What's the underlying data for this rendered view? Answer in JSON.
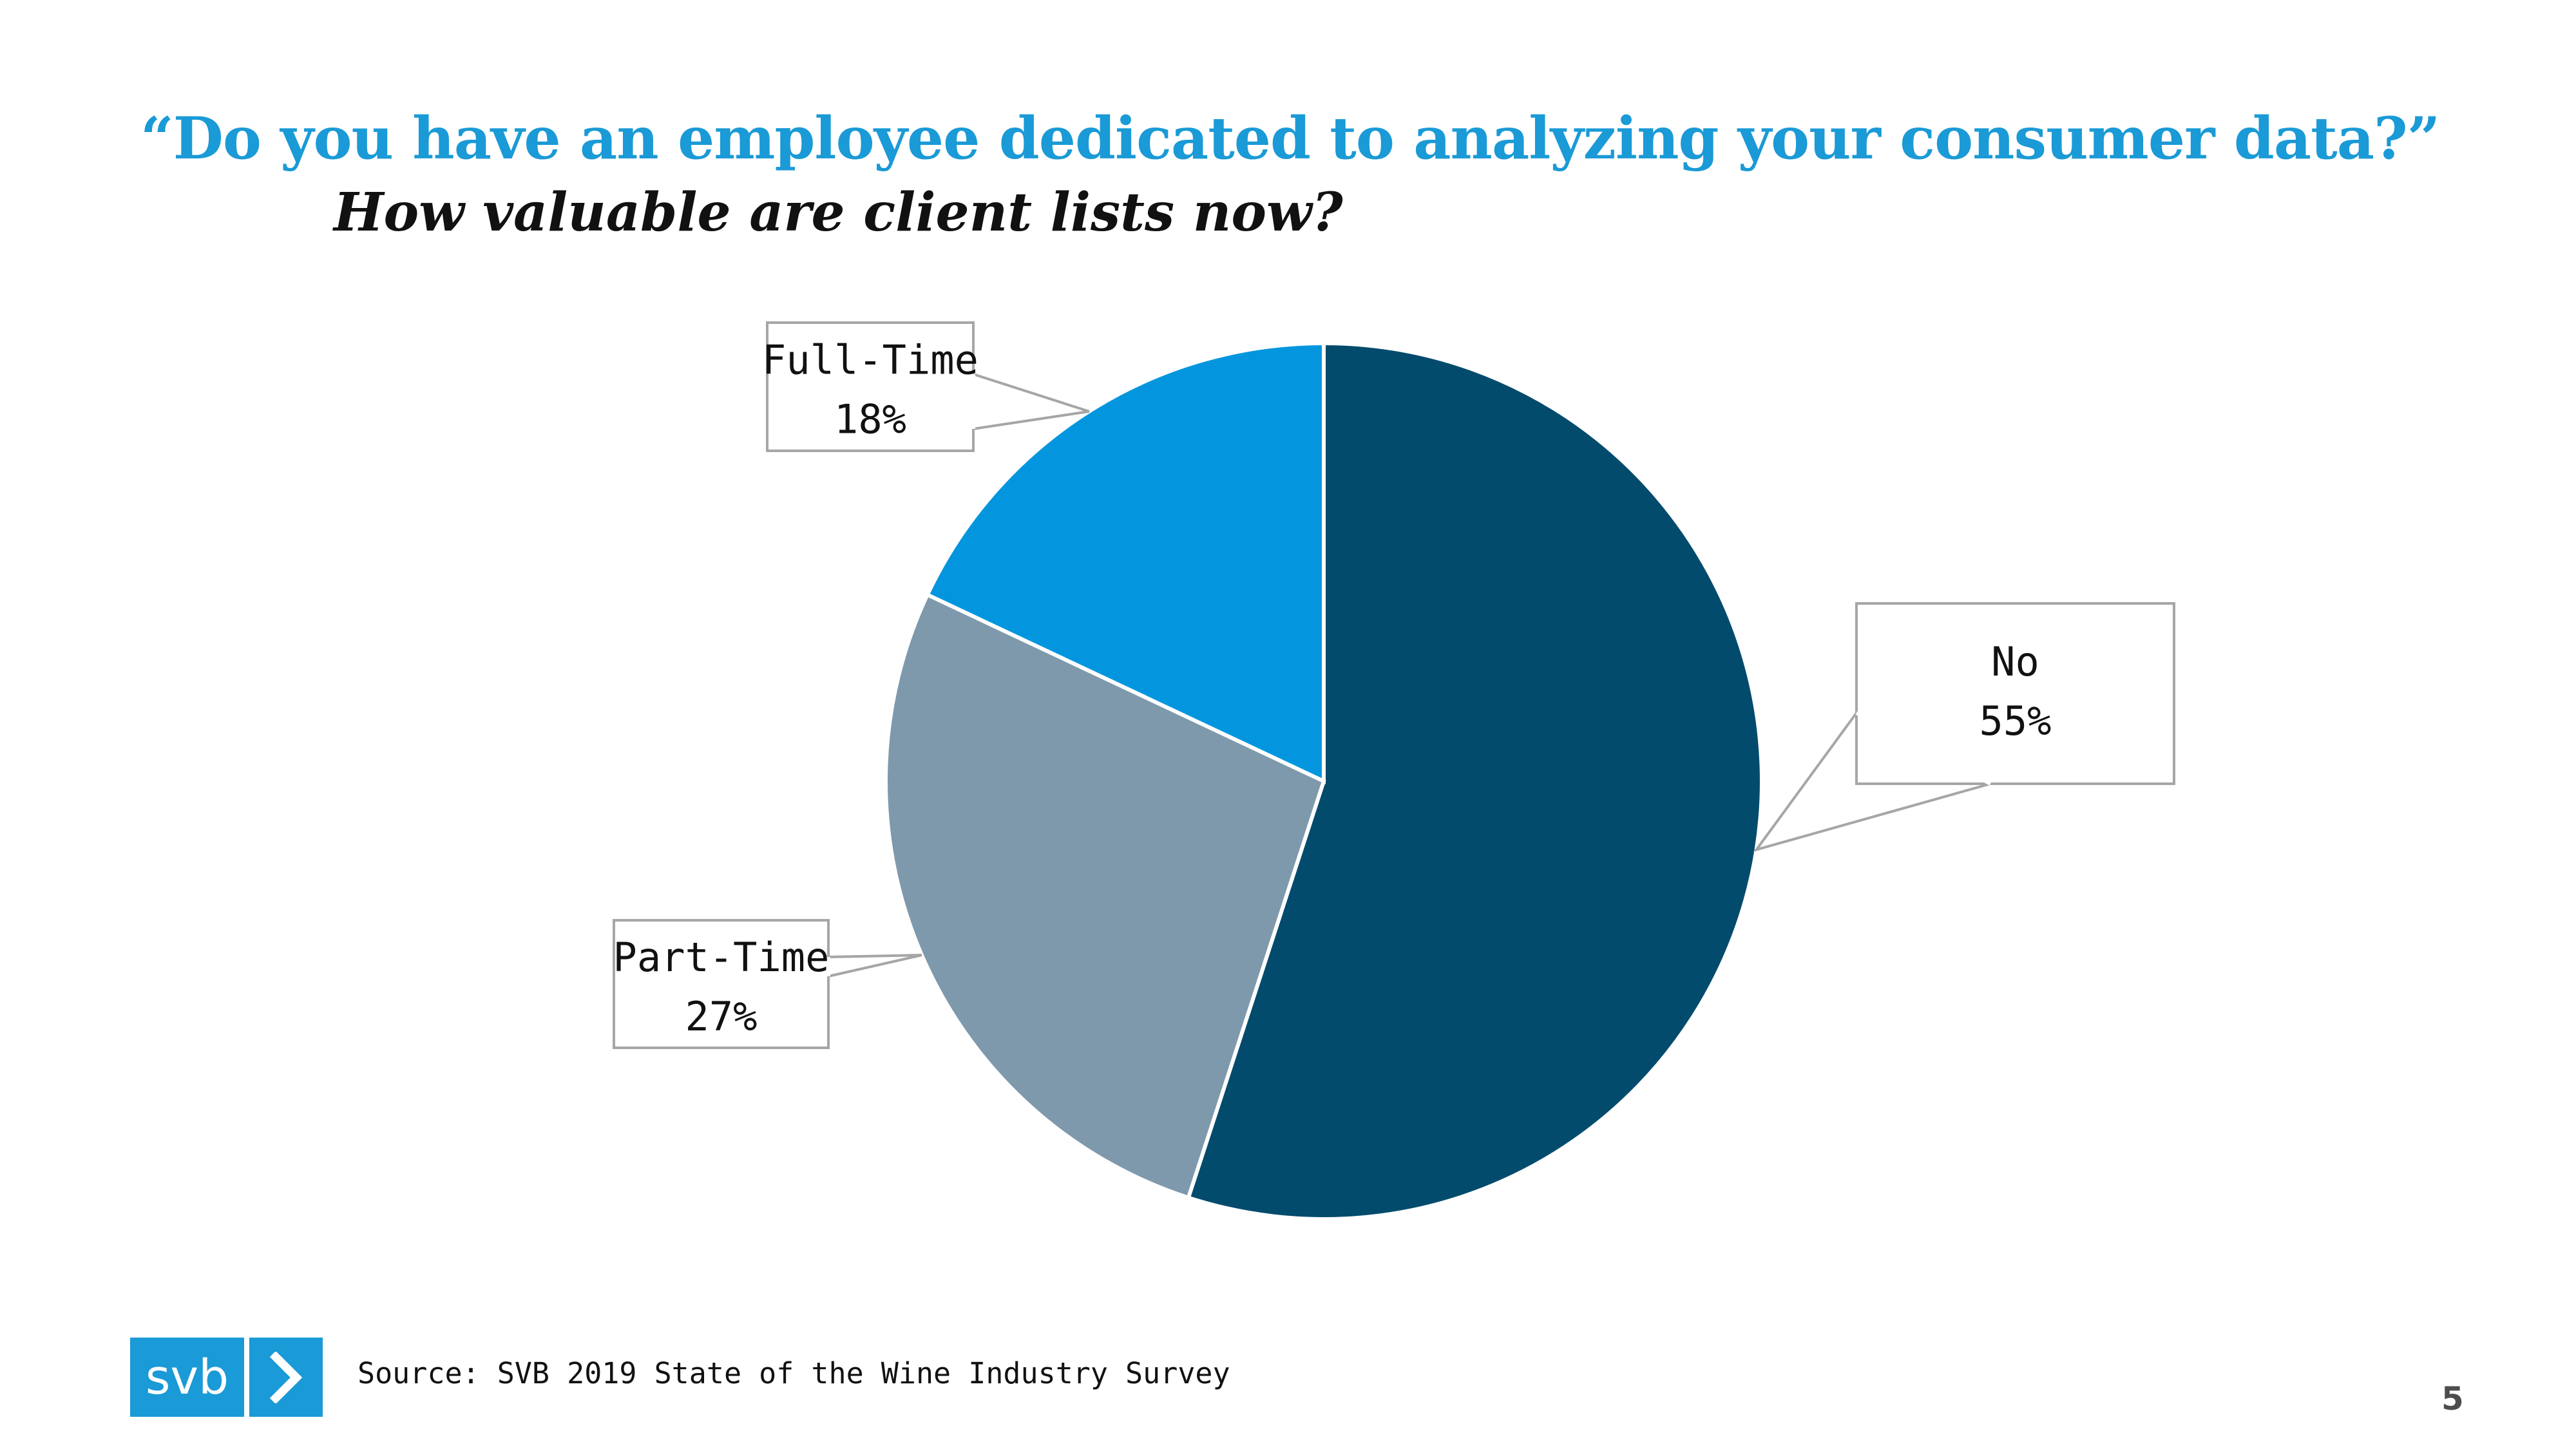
{
  "title": "“Do you have an employee dedicated to analyzing your consumer data?”",
  "subtitle": "How valuable are client lists now?",
  "source": "Source: SVB 2019 State of the Wine Industry Survey",
  "page_number": "5",
  "logo": {
    "text": "svb",
    "icon": "chevron-right-icon"
  },
  "colors": {
    "title": "#1a9ad6",
    "no": "#034b6c",
    "part_time": "#7f99ac",
    "full_time": "#0396df"
  },
  "chart_data": {
    "type": "pie",
    "slices": [
      {
        "label": "No",
        "value": 55,
        "display": "55%",
        "color": "#034b6c"
      },
      {
        "label": "Part-Time",
        "value": 27,
        "display": "27%",
        "color": "#7f99ac"
      },
      {
        "label": "Full-Time",
        "value": 18,
        "display": "18%",
        "color": "#0396df"
      }
    ],
    "legend": "none",
    "data_labels": "callouts"
  }
}
